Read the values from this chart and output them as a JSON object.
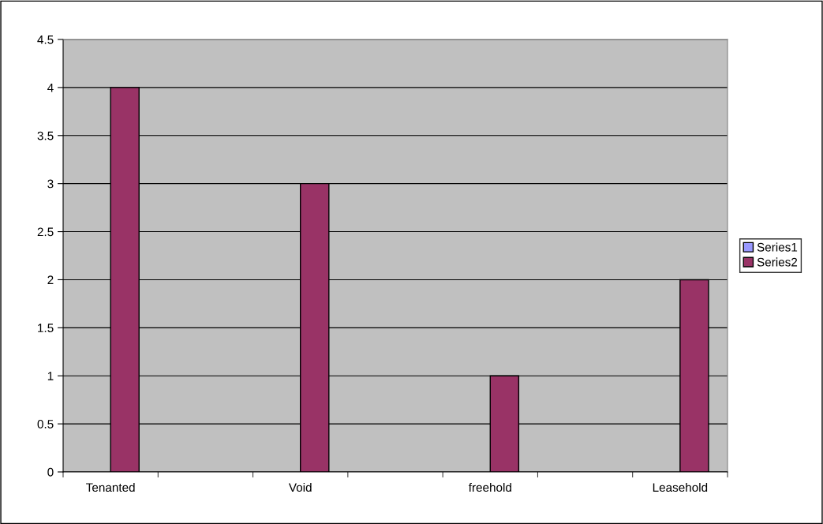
{
  "chart_data": {
    "type": "bar",
    "categories": [
      "Tenanted",
      null,
      "Void",
      null,
      "freehold",
      null,
      "Leasehold"
    ],
    "series": [
      {
        "name": "Series1",
        "color": "#9999ff",
        "values": [
          null,
          null,
          null,
          null,
          null,
          null,
          null
        ]
      },
      {
        "name": "Series2",
        "color": "#993366",
        "values": [
          4,
          null,
          3,
          null,
          1,
          null,
          2
        ]
      }
    ],
    "ylim": [
      0,
      4.5
    ],
    "yticks": [
      0,
      0.5,
      1,
      1.5,
      2,
      2.5,
      3,
      3.5,
      4,
      4.5
    ],
    "grid": "y",
    "legend": "right"
  }
}
